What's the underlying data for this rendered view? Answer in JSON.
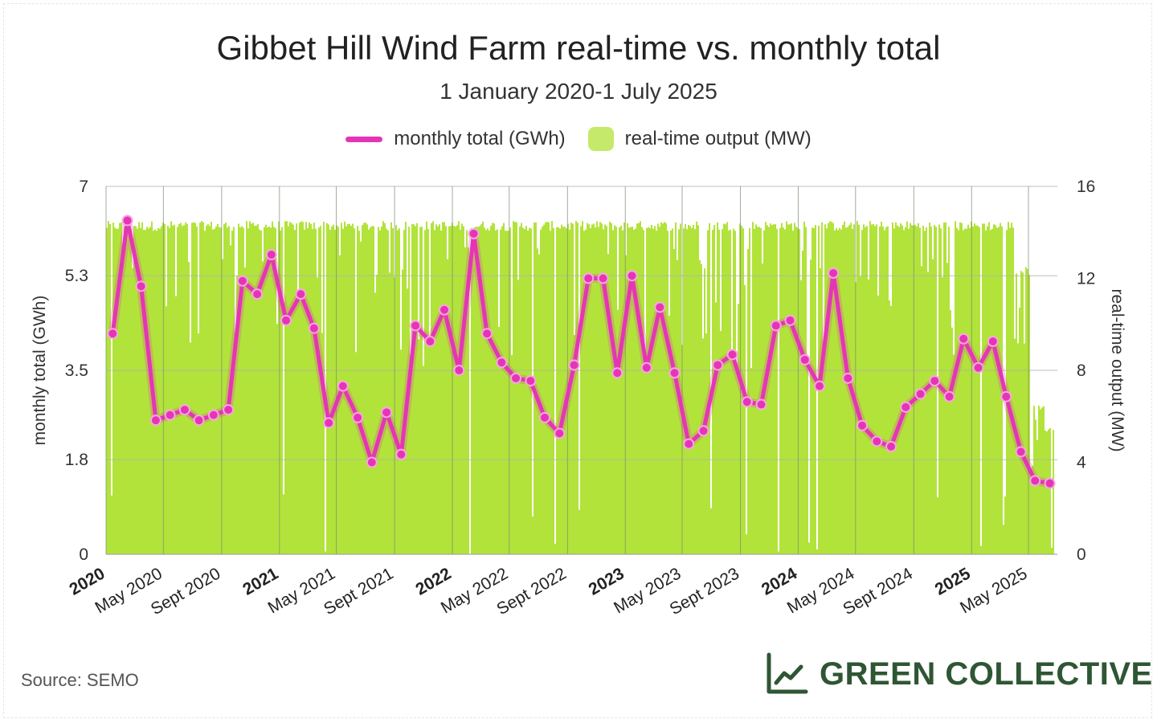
{
  "title": "Gibbet Hill Wind Farm real-time vs. monthly total",
  "subtitle": "1 January 2020-1 July 2025",
  "source": "Source: SEMO",
  "brand": {
    "name": "GREEN COLLECTIVE",
    "icon": "line-chart-icon",
    "color": "#2f5634"
  },
  "colors": {
    "line": "#e535b6",
    "area": "#b2e33a",
    "grid": "#b0b0b0"
  },
  "chart_data": {
    "type": "line",
    "legend": {
      "placement": "top-center",
      "entries": [
        "monthly total (GWh)",
        "real-time output (MW)"
      ]
    },
    "xlim": [
      "2020-01-01",
      "2025-07-01"
    ],
    "x_ticks": [
      {
        "label": "2020",
        "date": "2020-01-01",
        "bold": true
      },
      {
        "label": "May 2020",
        "date": "2020-05-01",
        "bold": false
      },
      {
        "label": "Sept 2020",
        "date": "2020-09-01",
        "bold": false
      },
      {
        "label": "2021",
        "date": "2021-01-01",
        "bold": true
      },
      {
        "label": "May 2021",
        "date": "2021-05-01",
        "bold": false
      },
      {
        "label": "Sept 2021",
        "date": "2021-09-01",
        "bold": false
      },
      {
        "label": "2022",
        "date": "2022-01-01",
        "bold": true
      },
      {
        "label": "May 2022",
        "date": "2022-05-01",
        "bold": false
      },
      {
        "label": "Sept 2022",
        "date": "2022-09-01",
        "bold": false
      },
      {
        "label": "2023",
        "date": "2023-01-01",
        "bold": true
      },
      {
        "label": "May 2023",
        "date": "2023-05-01",
        "bold": false
      },
      {
        "label": "Sept 2023",
        "date": "2023-09-01",
        "bold": false
      },
      {
        "label": "2024",
        "date": "2024-01-01",
        "bold": true
      },
      {
        "label": "May 2024",
        "date": "2024-05-01",
        "bold": false
      },
      {
        "label": "Sept 2024",
        "date": "2024-09-01",
        "bold": false
      },
      {
        "label": "2025",
        "date": "2025-01-01",
        "bold": true
      },
      {
        "label": "May 2025",
        "date": "2025-05-01",
        "bold": false
      }
    ],
    "y_left": {
      "label": "monthly total (GWh)",
      "ticks": [
        "0",
        "1.8",
        "3.5",
        "5.3",
        "7"
      ],
      "ylim": [
        0,
        7
      ]
    },
    "y_right": {
      "label": "real-time output (MW)",
      "ticks": [
        "0",
        "4",
        "8",
        "12",
        "16"
      ],
      "ylim": [
        0,
        16
      ]
    },
    "series": [
      {
        "name": "monthly total (GWh)",
        "type": "line",
        "values": [
          {
            "x": "2020-01-15",
            "y": 4.2
          },
          {
            "x": "2020-02-15",
            "y": 6.35
          },
          {
            "x": "2020-03-15",
            "y": 5.1
          },
          {
            "x": "2020-04-15",
            "y": 2.55
          },
          {
            "x": "2020-05-15",
            "y": 2.65
          },
          {
            "x": "2020-06-15",
            "y": 2.75
          },
          {
            "x": "2020-07-15",
            "y": 2.55
          },
          {
            "x": "2020-08-15",
            "y": 2.65
          },
          {
            "x": "2020-09-15",
            "y": 2.75
          },
          {
            "x": "2020-10-15",
            "y": 5.2
          },
          {
            "x": "2020-11-15",
            "y": 4.95
          },
          {
            "x": "2020-12-15",
            "y": 5.7
          },
          {
            "x": "2021-01-15",
            "y": 4.45
          },
          {
            "x": "2021-02-15",
            "y": 4.95
          },
          {
            "x": "2021-03-15",
            "y": 4.3
          },
          {
            "x": "2021-04-15",
            "y": 2.5
          },
          {
            "x": "2021-05-15",
            "y": 3.2
          },
          {
            "x": "2021-06-15",
            "y": 2.6
          },
          {
            "x": "2021-07-15",
            "y": 1.75
          },
          {
            "x": "2021-08-15",
            "y": 2.7
          },
          {
            "x": "2021-09-15",
            "y": 1.9
          },
          {
            "x": "2021-10-15",
            "y": 4.35
          },
          {
            "x": "2021-11-15",
            "y": 4.05
          },
          {
            "x": "2021-12-15",
            "y": 4.65
          },
          {
            "x": "2022-01-15",
            "y": 3.5
          },
          {
            "x": "2022-02-15",
            "y": 6.1
          },
          {
            "x": "2022-03-15",
            "y": 4.2
          },
          {
            "x": "2022-04-15",
            "y": 3.65
          },
          {
            "x": "2022-05-15",
            "y": 3.35
          },
          {
            "x": "2022-06-15",
            "y": 3.3
          },
          {
            "x": "2022-07-15",
            "y": 2.6
          },
          {
            "x": "2022-08-15",
            "y": 2.3
          },
          {
            "x": "2022-09-15",
            "y": 3.6
          },
          {
            "x": "2022-10-15",
            "y": 5.25
          },
          {
            "x": "2022-11-15",
            "y": 5.25
          },
          {
            "x": "2022-12-15",
            "y": 3.45
          },
          {
            "x": "2023-01-15",
            "y": 5.3
          },
          {
            "x": "2023-02-15",
            "y": 3.55
          },
          {
            "x": "2023-03-15",
            "y": 4.7
          },
          {
            "x": "2023-04-15",
            "y": 3.45
          },
          {
            "x": "2023-05-15",
            "y": 2.1
          },
          {
            "x": "2023-06-15",
            "y": 2.35
          },
          {
            "x": "2023-07-15",
            "y": 3.6
          },
          {
            "x": "2023-08-15",
            "y": 3.8
          },
          {
            "x": "2023-09-15",
            "y": 2.9
          },
          {
            "x": "2023-10-15",
            "y": 2.85
          },
          {
            "x": "2023-11-15",
            "y": 4.35
          },
          {
            "x": "2023-12-15",
            "y": 4.45
          },
          {
            "x": "2024-01-15",
            "y": 3.7
          },
          {
            "x": "2024-02-15",
            "y": 3.2
          },
          {
            "x": "2024-03-15",
            "y": 5.35
          },
          {
            "x": "2024-04-15",
            "y": 3.35
          },
          {
            "x": "2024-05-15",
            "y": 2.45
          },
          {
            "x": "2024-06-15",
            "y": 2.15
          },
          {
            "x": "2024-07-15",
            "y": 2.05
          },
          {
            "x": "2024-08-15",
            "y": 2.8
          },
          {
            "x": "2024-09-15",
            "y": 3.05
          },
          {
            "x": "2024-10-15",
            "y": 3.3
          },
          {
            "x": "2024-11-15",
            "y": 3.0
          },
          {
            "x": "2024-12-15",
            "y": 4.1
          },
          {
            "x": "2025-01-15",
            "y": 3.55
          },
          {
            "x": "2025-02-15",
            "y": 4.05
          },
          {
            "x": "2025-03-15",
            "y": 3.0
          },
          {
            "x": "2025-04-15",
            "y": 1.95
          },
          {
            "x": "2025-05-15",
            "y": 1.4
          },
          {
            "x": "2025-06-15",
            "y": 1.35
          }
        ]
      },
      {
        "name": "real-time output (MW)",
        "type": "area",
        "max_output_mw": 14.5,
        "note_levels": "typical level at ~14.5 MW with frequent dips; late period lower",
        "late_levels": [
          {
            "x": "2025-04-01",
            "y": 12.5
          },
          {
            "x": "2025-05-01",
            "y": 6.5
          },
          {
            "x": "2025-06-01",
            "y": 5.5
          }
        ]
      }
    ]
  }
}
